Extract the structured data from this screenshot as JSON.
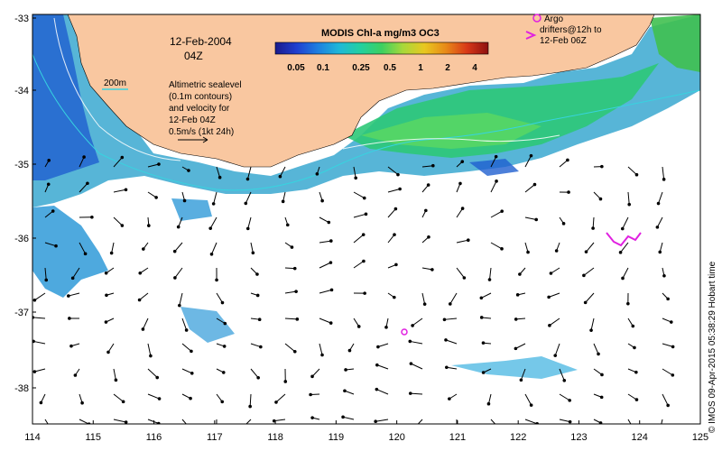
{
  "map": {
    "date_label": "12-Feb-2004",
    "time_label": "04Z",
    "depth_label": "200m",
    "sealevel_note": [
      "Altimetric sealevel",
      "(0.1m contours)",
      "and velocity for",
      "12-Feb 04Z",
      "0.5m/s (1kt 24h)"
    ],
    "colorbar": {
      "title": "MODIS Chl-a mg/m3 OC3",
      "ticks": [
        "0.05",
        "0.1",
        "0.25",
        "0.5",
        "1",
        "2",
        "4"
      ],
      "colors": [
        "#1a1a8c",
        "#1f3fd0",
        "#1e7fe0",
        "#1fb8d8",
        "#22d0a0",
        "#3cd060",
        "#a8d83a",
        "#e8c820",
        "#e88a18",
        "#d83818",
        "#8c1010"
      ]
    },
    "argo_legend": [
      "Argo",
      "drifters@12h to",
      "12-Feb 06Z"
    ],
    "credit": "© IMOS 09-Apr-2015 05:38:29 Hobart time",
    "x_ticks": [
      "114",
      "115",
      "116",
      "117",
      "118",
      "119",
      "120",
      "121",
      "122",
      "123",
      "124",
      "125"
    ],
    "y_ticks": [
      "-33",
      "-34",
      "-35",
      "-36",
      "-37",
      "-38"
    ],
    "colors": {
      "land": "#f9c7a0",
      "ocean": "#ffffff",
      "contour": "#37d4e0",
      "argo": "#e020e0",
      "arrow": "#000000"
    }
  }
}
